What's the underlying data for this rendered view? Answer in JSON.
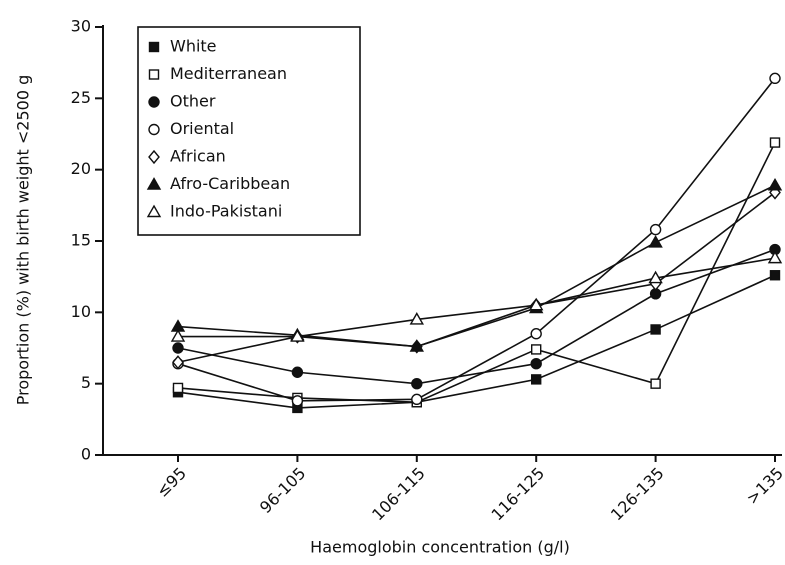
{
  "chart_data": {
    "type": "line",
    "x_label": "Haemoglobin concentration (g/l)",
    "y_label": "Proportion (%) with birth weight <2500 g",
    "categories": [
      "≤95",
      "96-105",
      "106-115",
      "116-125",
      "126-135",
      ">135"
    ],
    "series": [
      {
        "name": "White",
        "color": "#111111",
        "marker": "square-filled",
        "values": [
          4.4,
          3.3,
          3.7,
          5.3,
          8.8,
          12.6
        ]
      },
      {
        "name": "Mediterranean",
        "color": "#111111",
        "marker": "square-open",
        "values": [
          4.7,
          4.0,
          3.7,
          7.4,
          5.0,
          21.9
        ]
      },
      {
        "name": "Other",
        "color": "#111111",
        "marker": "circle-filled",
        "values": [
          7.5,
          5.8,
          5.0,
          6.4,
          11.3,
          14.4
        ]
      },
      {
        "name": "Oriental",
        "color": "#111111",
        "marker": "circle-open",
        "values": [
          6.4,
          3.8,
          3.9,
          8.5,
          15.8,
          26.4
        ]
      },
      {
        "name": "African",
        "color": "#111111",
        "marker": "diamond-open",
        "values": [
          6.5,
          8.3,
          7.6,
          10.5,
          12.0,
          18.4
        ]
      },
      {
        "name": "Afro-Caribbean",
        "color": "#111111",
        "marker": "triangle-filled",
        "values": [
          9.0,
          8.4,
          7.6,
          10.3,
          14.9,
          18.9
        ]
      },
      {
        "name": "Indo-Pakistani",
        "color": "#111111",
        "marker": "triangle-open",
        "values": [
          8.3,
          8.3,
          9.5,
          10.5,
          12.4,
          13.8
        ]
      }
    ],
    "ylim": [
      0,
      30
    ],
    "yticks": [
      0,
      5,
      10,
      15,
      20,
      25,
      30
    ],
    "legend": "upper-left"
  }
}
